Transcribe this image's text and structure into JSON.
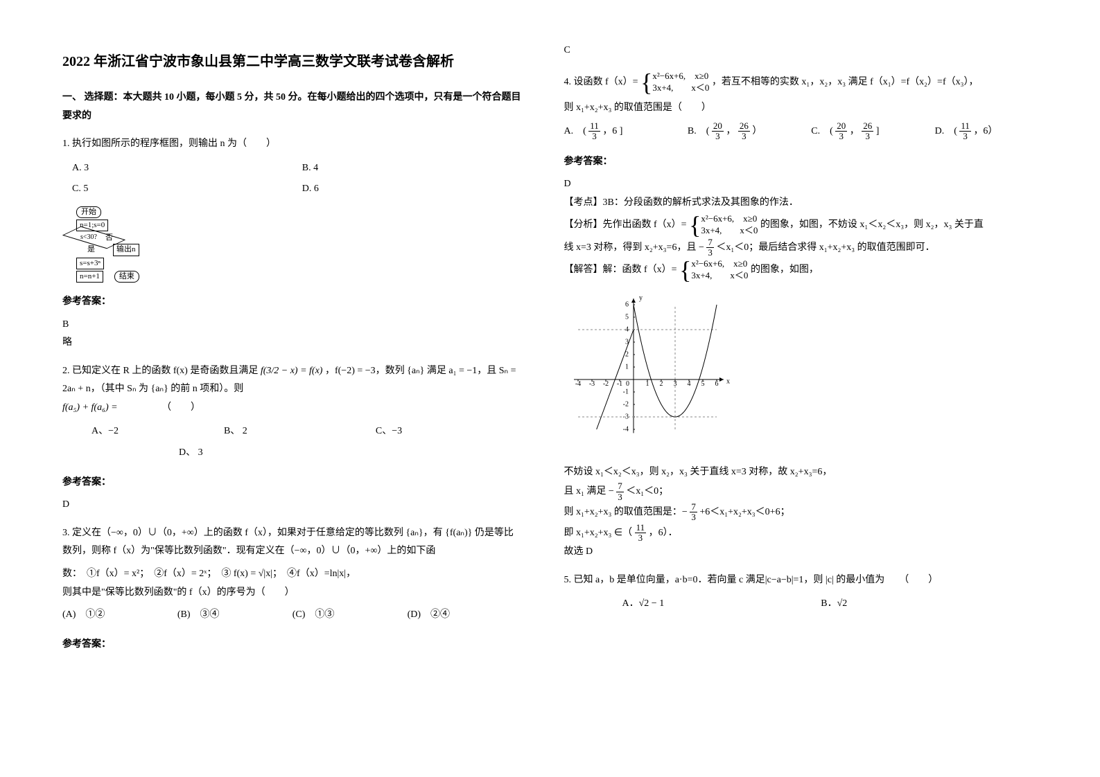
{
  "title": "2022 年浙江省宁波市象山县第二中学高三数学文联考试卷含解析",
  "section1": "一、 选择题：本大题共 10 小题，每小题 5 分，共 50 分。在每小题给出的四个选项中，只有是一个符合题目要求的",
  "q1": {
    "stem": "1. 执行如图所示的程序框图，则输出 n 为（　　）",
    "A": "A. 3",
    "B": "B. 4",
    "C": "C. 5",
    "D": "D. 6",
    "flow": {
      "start": "开始",
      "init": "n=1;s=0",
      "cond": "s<30?",
      "no": "否",
      "yes": "是",
      "step1": "s=s+3ⁿ",
      "step2": "n=n+1",
      "out": "输出n",
      "end": "结束"
    },
    "ans_label": "参考答案：",
    "ans": "B",
    "note": "略"
  },
  "q2": {
    "stem_a": "2. 已知定义在 R 上的函数 f(x) 是奇函数且满足 ",
    "stem_b": "f(3/2 − x) = f(x)",
    "stem_c": "，f(−2) = −3，数列 {aₙ} 满足 a₁ = −1，且 Sₙ = 2aₙ + n，（其中 Sₙ 为 {aₙ} 的前 n 项和）。则",
    "stem_d": "f(a₅) + f(a₆) =",
    "blank": "（　　）",
    "A": "A、−2",
    "B": "B、 2",
    "C": "C、−3",
    "D": "D、 3",
    "ans_label": "参考答案：",
    "ans": "D"
  },
  "q3": {
    "stem": "3. 定义在（−∞，0）∪（0，+∞）上的函数 f（x），如果对于任意给定的等比数列 {aₙ}，有 {f(aₙ)} 仍是等比数列，则称 f（x）为\"保等比数列函数\"．现有定义在（−∞，0）∪（0，+∞）上的如下函",
    "funcs": "数：　①f（x）= x²；　②f（x）= 2ˣ；　③ f(x) = √|x|；　④f（x）=ln|x|，",
    "ask": "则其中是\"保等比数列函数\"的 f（x）的序号为（　　）",
    "A": "(A)　①②",
    "B": "(B)　③④",
    "C": "(C)　①③",
    "D": "(D)　②④",
    "ans_label": "参考答案：",
    "ans": "C"
  },
  "q4": {
    "stem_a": "4. 设函数 f（x）=",
    "case1": "x²−6x+6,　x≥0",
    "case2": "3x+4,　　x＜0",
    "stem_b": "，若互不相等的实数 x₁，x₂，x₃ 满足 f（x₁）=f（x₂）=f（x₃），",
    "stem_c": "则 x₁+x₂+x₃ 的取值范围是（　　）",
    "optA_a": "A.　(",
    "optA_f1n": "11",
    "optA_f1d": "3",
    "optA_b": "，6 ]",
    "optB_a": "B.　(",
    "optB_f1n": "20",
    "optB_f1d": "3",
    "optB_b": "，",
    "optB_f2n": "26",
    "optB_f2d": "3",
    "optB_c": "）",
    "optC_a": "C.　(",
    "optC_f1n": "20",
    "optC_f1d": "3",
    "optC_b": "，",
    "optC_f2n": "26",
    "optC_f2d": "3",
    "optC_c": " ]",
    "optD_a": "D.　(",
    "optD_f1n": "11",
    "optD_f1d": "3",
    "optD_b": "，6）",
    "ans_label": "参考答案：",
    "ans": "D",
    "kp": "【考点】3B：分段函数的解析式求法及其图象的作法．",
    "fx_a": "【分析】先作出函数 f（x）=",
    "fx_b": "的图象，如图，不妨设 x₁＜x₂＜x₃，则 x₂，x₃ 关于直",
    "fx_c": "线 x=3 对称，得到 x₂+x₃=6，且 − ",
    "fx_fn": "7",
    "fx_fd": "3",
    "fx_d": " ＜x₁＜0；最后结合求得 x₁+x₂+x₃ 的取值范围即可．",
    "jd_a": "【解答】解：函数 f（x）=",
    "jd_b": "的图象，如图，",
    "graph": {
      "xmin": -4,
      "xmax": 6,
      "ymin": -4,
      "ymax": 6,
      "xticks": [
        -4,
        -3,
        -2,
        -1,
        0,
        1,
        2,
        3,
        4,
        5,
        6
      ],
      "yticks": [
        -4,
        -3,
        -2,
        -1,
        1,
        2,
        3,
        4,
        5,
        6
      ],
      "line": {
        "x0": -4,
        "y0": -8,
        "x1": 0,
        "y1": 4,
        "color": "#000"
      },
      "parabola": {
        "vertex_x": 3,
        "vertex_y": -3,
        "color": "#000"
      },
      "dash_h": {
        "y": 4,
        "color": "#888"
      },
      "dash_v": {
        "x": 3,
        "color": "#888"
      },
      "dash_y3": {
        "y": -3,
        "color": "#888"
      },
      "axis_color": "#000",
      "bg": "#ffffff"
    },
    "sol1": "不妨设 x₁＜x₂＜x₃，则 x₂，x₃ 关于直线 x=3 对称，故 x₂+x₃=6，",
    "sol2_a": "且 x₁ 满足 − ",
    "sol2_fn": "7",
    "sol2_fd": "3",
    "sol2_b": " ＜x₁＜0；",
    "sol3_a": "则 x₁+x₂+x₃ 的取值范围是：− ",
    "sol3_fn": "7",
    "sol3_fd": "3",
    "sol3_b": " +6＜x₁+x₂+x₃＜0+6；",
    "sol4_a": "即 x₁+x₂+x₃ ∈（",
    "sol4_fn": "11",
    "sol4_fd": "3",
    "sol4_b": "，6）．",
    "sol5": "故选 D"
  },
  "q5": {
    "stem": "5. 已知 a，b 是单位向量，a·b=0．若向量 c 满足|c−a−b|=1，则 |c| 的最小值为　　（　　）",
    "A": "A．√2 − 1",
    "B": "B．√2"
  }
}
